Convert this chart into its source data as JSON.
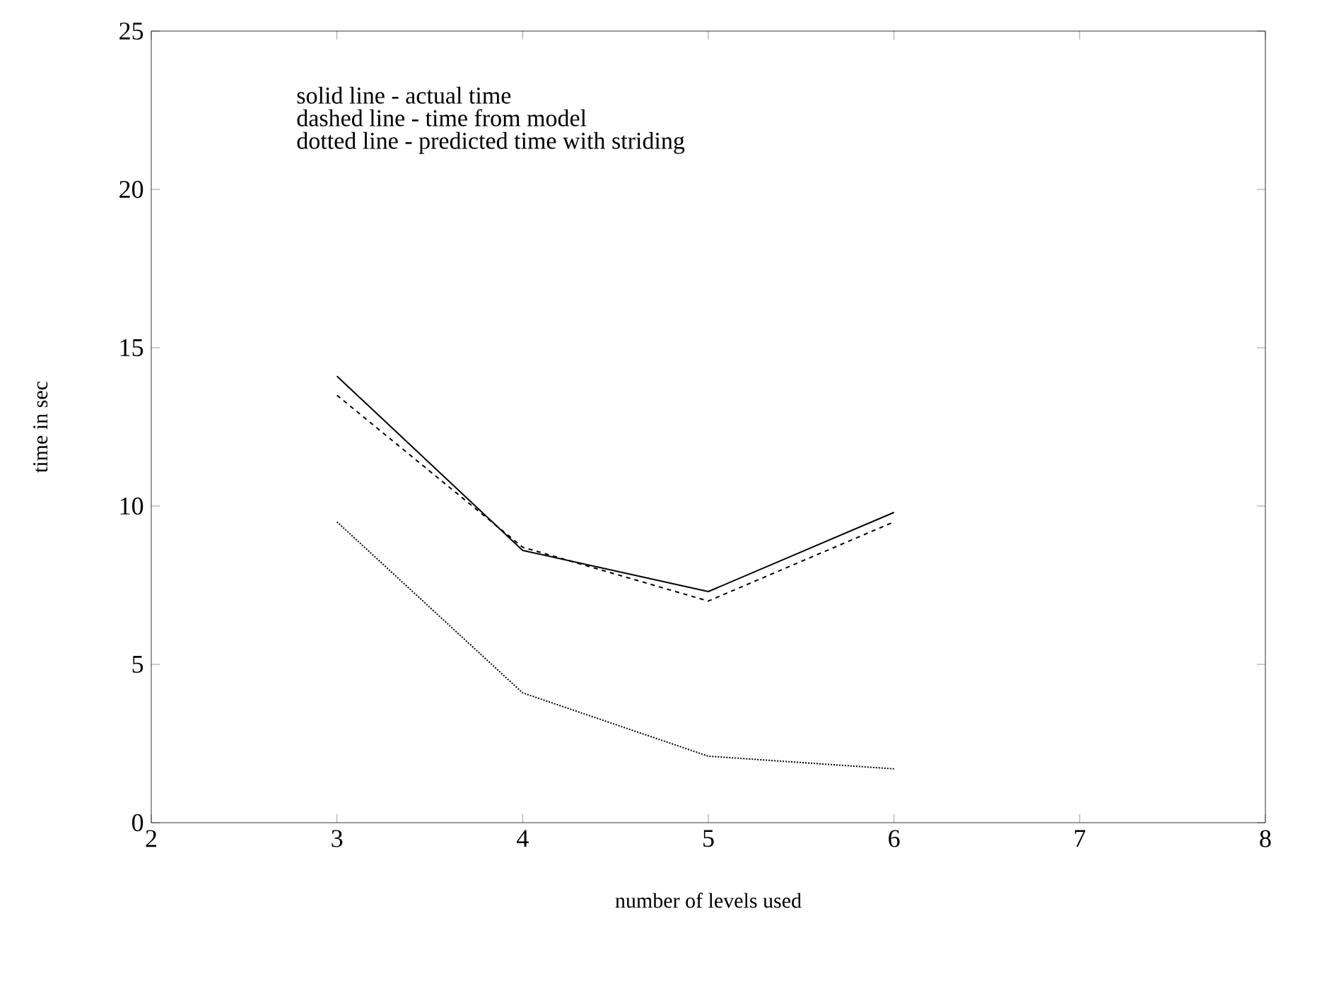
{
  "chart_data": {
    "type": "line",
    "xlabel": "number of levels used",
    "ylabel": "time in sec",
    "annotations": [
      "solid line - actual time",
      "dashed line - time from model",
      "dotted line - predicted time with striding"
    ],
    "x": [
      3,
      4,
      5,
      6
    ],
    "series": [
      {
        "color": "#000000",
        "line_style": "solid",
        "values": [
          14.1,
          8.6,
          7.3,
          9.8
        ]
      },
      {
        "color": "#000000",
        "line_style": "dashed",
        "values": [
          13.5,
          8.7,
          7.0,
          9.5
        ]
      },
      {
        "color": "#000000",
        "line_style": "dotted",
        "values": [
          9.5,
          4.1,
          2.1,
          1.7
        ]
      }
    ],
    "xlim": [
      2,
      8
    ],
    "ylim": [
      0,
      25
    ],
    "xticks": [
      2,
      3,
      4,
      5,
      6,
      7,
      8
    ],
    "yticks": [
      0,
      5,
      10,
      15,
      20,
      25
    ],
    "grid": false,
    "marker": "none"
  }
}
